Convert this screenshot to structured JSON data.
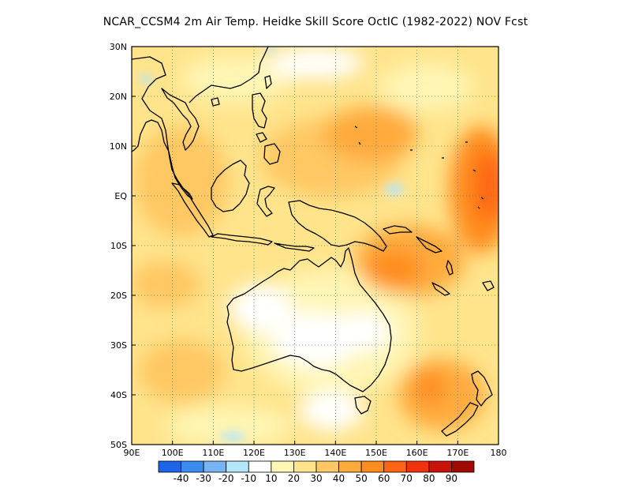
{
  "title": "NCAR_CCSM4  2m Air Temp. Heidke Skill Score OctIC (1982-2022) NOV Fcst",
  "map": {
    "lon_range": [
      90,
      180
    ],
    "lat_range": [
      -50,
      30
    ],
    "lon_ticks": [
      {
        "value": 90,
        "label": "90E"
      },
      {
        "value": 100,
        "label": "100E"
      },
      {
        "value": 110,
        "label": "110E"
      },
      {
        "value": 120,
        "label": "120E"
      },
      {
        "value": 130,
        "label": "130E"
      },
      {
        "value": 140,
        "label": "140E"
      },
      {
        "value": 150,
        "label": "150E"
      },
      {
        "value": 160,
        "label": "160E"
      },
      {
        "value": 170,
        "label": "170E"
      },
      {
        "value": 180,
        "label": "180"
      }
    ],
    "lat_ticks": [
      {
        "value": 30,
        "label": "30N"
      },
      {
        "value": 20,
        "label": "20N"
      },
      {
        "value": 10,
        "label": "10N"
      },
      {
        "value": 0,
        "label": "EQ"
      },
      {
        "value": -10,
        "label": "10S"
      },
      {
        "value": -20,
        "label": "20S"
      },
      {
        "value": -30,
        "label": "30S"
      },
      {
        "value": -40,
        "label": "40S"
      },
      {
        "value": -50,
        "label": "50S"
      }
    ],
    "gridlines": "dotted"
  },
  "colorbar": {
    "colors": [
      "#1c64e8",
      "#3c8cf0",
      "#78b4f5",
      "#b4e6fa",
      "#ffffff",
      "#fff5b4",
      "#ffe48c",
      "#ffc864",
      "#ffaa3c",
      "#ff8c1e",
      "#ff6414",
      "#f0320f",
      "#c81408",
      "#a00a00"
    ],
    "labels": [
      "-40",
      "-30",
      "-20",
      "-10",
      "10",
      "20",
      "30",
      "40",
      "50",
      "60",
      "70",
      "80",
      "90"
    ]
  }
}
